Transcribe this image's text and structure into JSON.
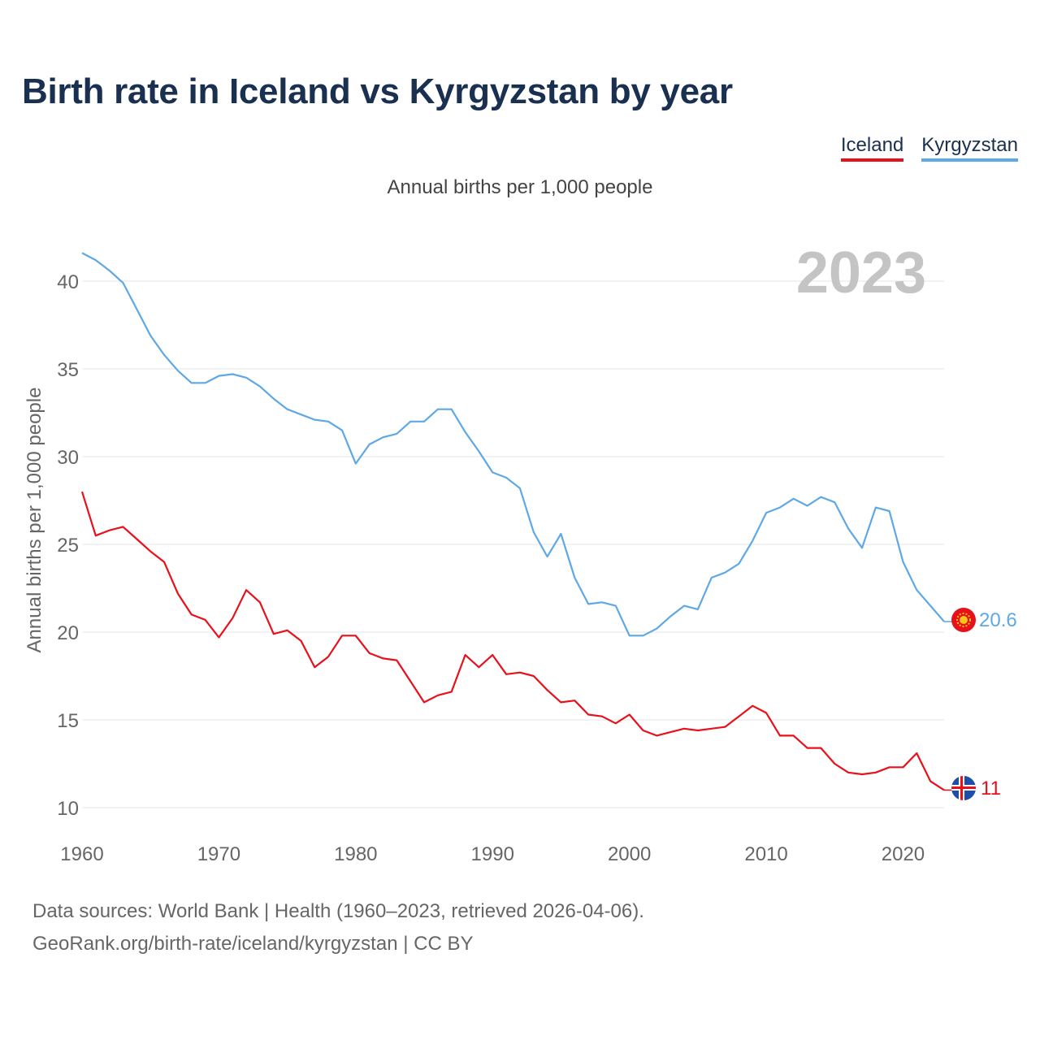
{
  "header": {
    "title": "Birth rate in Iceland vs Kyrgyzstan by year"
  },
  "legend": {
    "items": [
      "Iceland",
      "Kyrgyzstan"
    ]
  },
  "colors": {
    "iceland": "#e8101a",
    "kyrgyzstan": "#5ea8e6",
    "year": "#c4c4c4",
    "grid": "#e6e6e6",
    "axis_text": "#666666",
    "title": "#1a3050"
  },
  "chart_data": {
    "type": "line",
    "title": "Birth rate in Iceland vs Kyrgyzstan by year",
    "subtitle": "Annual births per 1,000 people",
    "ylabel": "Annual births per 1,000 people",
    "xlabel": "",
    "year_label": "2023",
    "xlim": [
      1960,
      2023
    ],
    "ylim": [
      8.5,
      43
    ],
    "x_ticks": [
      1960,
      1970,
      1980,
      1990,
      2000,
      2010,
      2020
    ],
    "y_ticks": [
      10,
      15,
      20,
      25,
      30,
      35,
      40
    ],
    "x": [
      1960,
      1961,
      1962,
      1963,
      1964,
      1965,
      1966,
      1967,
      1968,
      1969,
      1970,
      1971,
      1972,
      1973,
      1974,
      1975,
      1976,
      1977,
      1978,
      1979,
      1980,
      1981,
      1982,
      1983,
      1984,
      1985,
      1986,
      1987,
      1988,
      1989,
      1990,
      1991,
      1992,
      1993,
      1994,
      1995,
      1996,
      1997,
      1998,
      1999,
      2000,
      2001,
      2002,
      2003,
      2004,
      2005,
      2006,
      2007,
      2008,
      2009,
      2010,
      2011,
      2012,
      2013,
      2014,
      2015,
      2016,
      2017,
      2018,
      2019,
      2020,
      2021,
      2022,
      2023
    ],
    "series": [
      {
        "name": "Iceland",
        "end_label": "11",
        "values": [
          28.0,
          25.5,
          25.8,
          26.0,
          25.3,
          24.6,
          24.0,
          22.2,
          21.0,
          20.7,
          19.7,
          20.8,
          22.4,
          21.7,
          19.9,
          20.1,
          19.5,
          18.0,
          18.6,
          19.8,
          19.8,
          18.8,
          18.5,
          18.4,
          17.2,
          16.0,
          16.4,
          16.6,
          18.7,
          18.0,
          18.7,
          17.6,
          17.7,
          17.5,
          16.7,
          16.0,
          16.1,
          15.3,
          15.2,
          14.8,
          15.3,
          14.4,
          14.1,
          14.3,
          14.5,
          14.4,
          14.5,
          14.6,
          15.2,
          15.8,
          15.4,
          14.1,
          14.1,
          13.4,
          13.4,
          12.5,
          12.0,
          11.9,
          12.0,
          12.3,
          12.3,
          13.1,
          11.5,
          11.0
        ]
      },
      {
        "name": "Kyrgyzstan",
        "end_label": "20.6",
        "values": [
          41.6,
          41.2,
          40.6,
          39.9,
          38.4,
          36.9,
          35.8,
          34.9,
          34.2,
          34.2,
          34.6,
          34.7,
          34.5,
          34.0,
          33.3,
          32.7,
          32.4,
          32.1,
          32.0,
          31.5,
          29.6,
          30.7,
          31.1,
          31.3,
          32.0,
          32.0,
          32.7,
          32.7,
          31.4,
          30.3,
          29.1,
          28.8,
          28.2,
          25.7,
          24.3,
          25.6,
          23.1,
          21.6,
          21.7,
          21.5,
          19.8,
          19.8,
          20.2,
          20.9,
          21.5,
          21.3,
          23.1,
          23.4,
          23.9,
          25.2,
          26.8,
          27.1,
          27.6,
          27.2,
          27.7,
          27.4,
          25.9,
          24.8,
          27.1,
          26.9,
          24.0,
          22.4,
          21.5,
          20.6
        ]
      }
    ]
  },
  "footer": {
    "sources": "Data sources: World Bank | Health (1960–2023, retrieved 2026-04-06).",
    "credit": "GeoRank.org/birth-rate/iceland/kyrgyzstan | CC BY"
  }
}
